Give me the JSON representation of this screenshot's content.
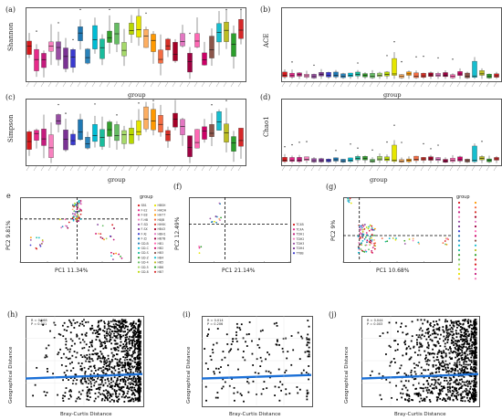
{
  "chart_data": [
    {
      "panel": "(a)",
      "type": "box",
      "ylabel": "Shannon",
      "xlabel": "group",
      "series_count": 30
    },
    {
      "panel": "(b)",
      "type": "box",
      "ylabel": "ACE",
      "xlabel": "group",
      "series_count": 30
    },
    {
      "panel": "(c)",
      "type": "box",
      "ylabel": "Simpson",
      "xlabel": "group",
      "series_count": 30
    },
    {
      "panel": "(d)",
      "type": "box",
      "ylabel": "Chao1",
      "xlabel": "group",
      "series_count": 30
    },
    {
      "panel": "e",
      "type": "scatter",
      "xlabel": "PC1 11.34%",
      "ylabel": "PC2 9.81%",
      "legend_title": "group",
      "legend": [
        "SB1",
        "F-E2",
        "F-E8",
        "F-HB",
        "F-SD",
        "F-SX",
        "F-XJ",
        "F-ZJ",
        "GD-B",
        "GD-C",
        "GD-S",
        "GD-Z",
        "GD-4",
        "GD-5",
        "GD-8",
        "HBSH",
        "HHDH",
        "HH77",
        "H8JB",
        "HH9K",
        "HB43",
        "HBH1",
        "HB7B",
        "HB1",
        "HB2",
        "HB3",
        "HB4",
        "HB5",
        "HB6",
        "HB7"
      ]
    },
    {
      "panel": "(f)",
      "type": "scatter",
      "xlabel": "PC1 21.14%",
      "ylabel": "PC2 12.49%",
      "legend": [
        "TC4B",
        "TC4A",
        "TDH1",
        "TDH2",
        "TDH3",
        "TDH4",
        "TT8B"
      ]
    },
    {
      "panel": "(g)",
      "type": "scatter",
      "xlabel": "PC1 10.68%",
      "ylabel": "PC2 9%",
      "legend_title": "group"
    },
    {
      "panel": "(h)",
      "type": "scatter",
      "xlabel": "Bray-Curtis Distance",
      "ylabel": "Geographical Distance",
      "stats": [
        "R = 0.168",
        "P = 0.001"
      ]
    },
    {
      "panel": "(i)",
      "type": "scatter",
      "xlabel": "Bray-Curtis Distance",
      "ylabel": "Geographical Distance",
      "stats": [
        "R = 0.014",
        "P = 0.206"
      ]
    },
    {
      "panel": "(j)",
      "type": "scatter",
      "xlabel": "Bray-Curtis Distance",
      "ylabel": "Geographical Distance",
      "stats": [
        "R = 0.044",
        "P = 0.003"
      ]
    }
  ],
  "labels": {
    "a": "(a)",
    "b": "(b)",
    "c": "(c)",
    "d": "(d)",
    "e": "e",
    "f": "(f)",
    "g": "(g)",
    "h": "(h)",
    "i": "(i)",
    "j": "(j)",
    "shannon": "Shannon",
    "ace": "ACE",
    "simpson": "Simpson",
    "chao1": "Chao1",
    "group": "group",
    "e_x": "PC1 11.34%",
    "e_y": "PC2 9.81%",
    "f_x": "PC1 21.14%",
    "f_y": "PC2 12.49%",
    "g_x": "PC1 10.68%",
    "g_y": "PC2 9%",
    "bc": "Bray-Curtis Distance",
    "geo": "Geographical Distance",
    "h_r": "R = 0.168",
    "h_p": "P = 0.001",
    "i_r": "R = 0.014",
    "i_p": "P = 0.206",
    "j_r": "R = 0.044",
    "j_p": "P = 0.003"
  },
  "colors": [
    "#d7191c",
    "#e7298a",
    "#c51b7d",
    "#f781bf",
    "#984ea3",
    "#7b3294",
    "#3a3ad0",
    "#1f78b4",
    "#2b83ba",
    "#00bcd4",
    "#1abc9c",
    "#33a02c",
    "#66bd63",
    "#a6d96a",
    "#b8d800",
    "#e6e600",
    "#fdae61",
    "#ff9900",
    "#f46d43",
    "#d73027",
    "#a50026",
    "#e377c2",
    "#9e0142",
    "#ff69b4",
    "#cc0066",
    "#8c564b",
    "#17becf",
    "#bcbd22",
    "#2ca02c",
    "#d62728"
  ]
}
